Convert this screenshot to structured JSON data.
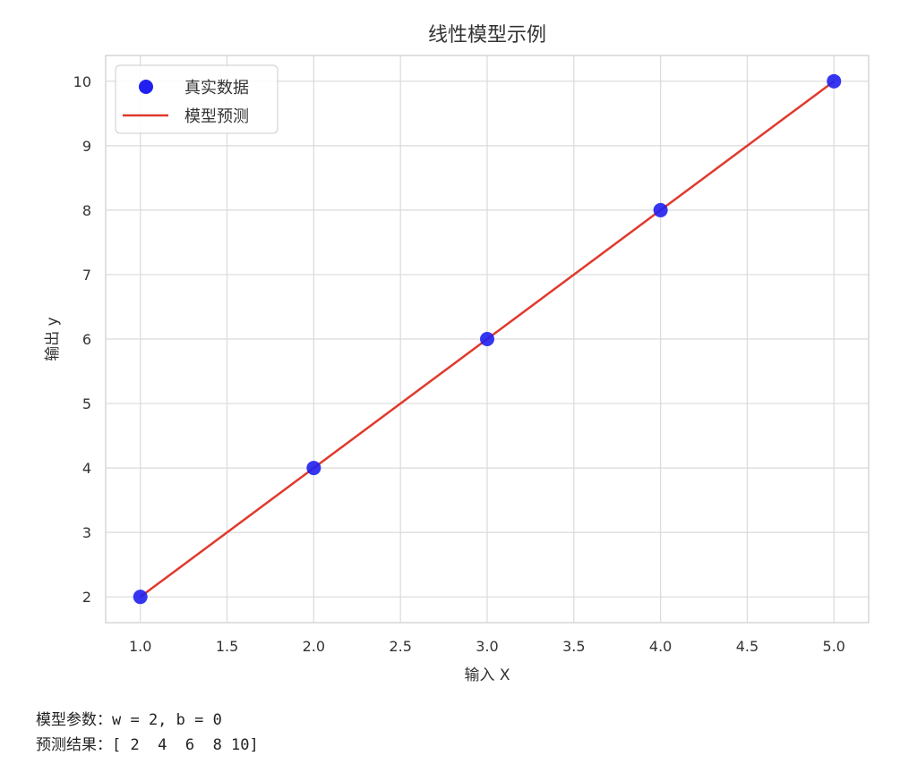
{
  "chart_data": {
    "type": "line",
    "title": "线性模型示例",
    "xlabel": "输入 X",
    "ylabel": "输出 y",
    "xlim": [
      0.8,
      5.2
    ],
    "ylim": [
      1.6,
      10.4
    ],
    "xticks": [
      "1.0",
      "1.5",
      "2.0",
      "2.5",
      "3.0",
      "3.5",
      "4.0",
      "4.5",
      "5.0"
    ],
    "xtick_values": [
      1,
      1.5,
      2,
      2.5,
      3,
      3.5,
      4,
      4.5,
      5
    ],
    "yticks": [
      "2",
      "3",
      "4",
      "5",
      "6",
      "7",
      "8",
      "9",
      "10"
    ],
    "ytick_values": [
      2,
      3,
      4,
      5,
      6,
      7,
      8,
      9,
      10
    ],
    "grid": true,
    "legend_position": "top-left",
    "series": [
      {
        "name": "真实数据",
        "kind": "scatter",
        "color": "#2020f0",
        "x": [
          1,
          2,
          3,
          4,
          5
        ],
        "y": [
          2,
          4,
          6,
          8,
          10
        ]
      },
      {
        "name": "模型预测",
        "kind": "line",
        "color": "#e03a2c",
        "x": [
          1,
          2,
          3,
          4,
          5
        ],
        "y": [
          2,
          4,
          6,
          8,
          10
        ]
      }
    ]
  },
  "output": {
    "line1": "模型参数：w = 2, b = 0",
    "line2": "预测结果：[ 2  4  6  8 10]"
  }
}
